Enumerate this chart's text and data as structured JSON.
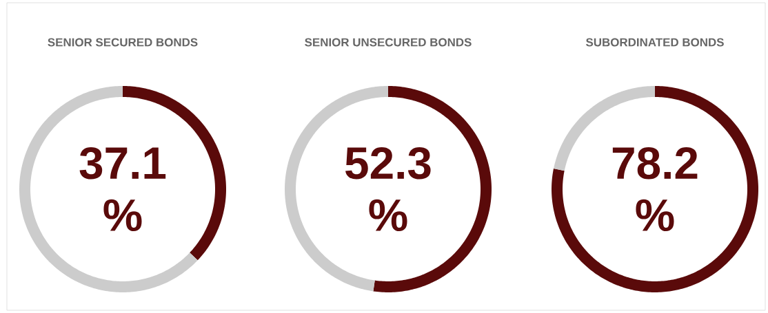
{
  "chart_data": [
    {
      "type": "donut",
      "title": "SENIOR SECURED BONDS",
      "categories": [
        null,
        null
      ],
      "values": [
        37.1,
        62.9
      ],
      "colors": [
        "#5a0a0a",
        "#cccccc"
      ],
      "annotations": [
        "37.1 %"
      ]
    },
    {
      "type": "donut",
      "title": "SENIOR UNSECURED BONDS",
      "categories": [
        null,
        null
      ],
      "values": [
        52.3,
        47.7
      ],
      "colors": [
        "#5a0a0a",
        "#cccccc"
      ],
      "annotations": [
        "52.3 %"
      ]
    },
    {
      "type": "donut",
      "title": "SUBORDINATED BONDS",
      "categories": [
        null,
        null
      ],
      "values": [
        78.2,
        21.8
      ],
      "colors": [
        "#5a0a0a",
        "#cccccc"
      ],
      "annotations": [
        "78.2 %"
      ]
    }
  ]
}
